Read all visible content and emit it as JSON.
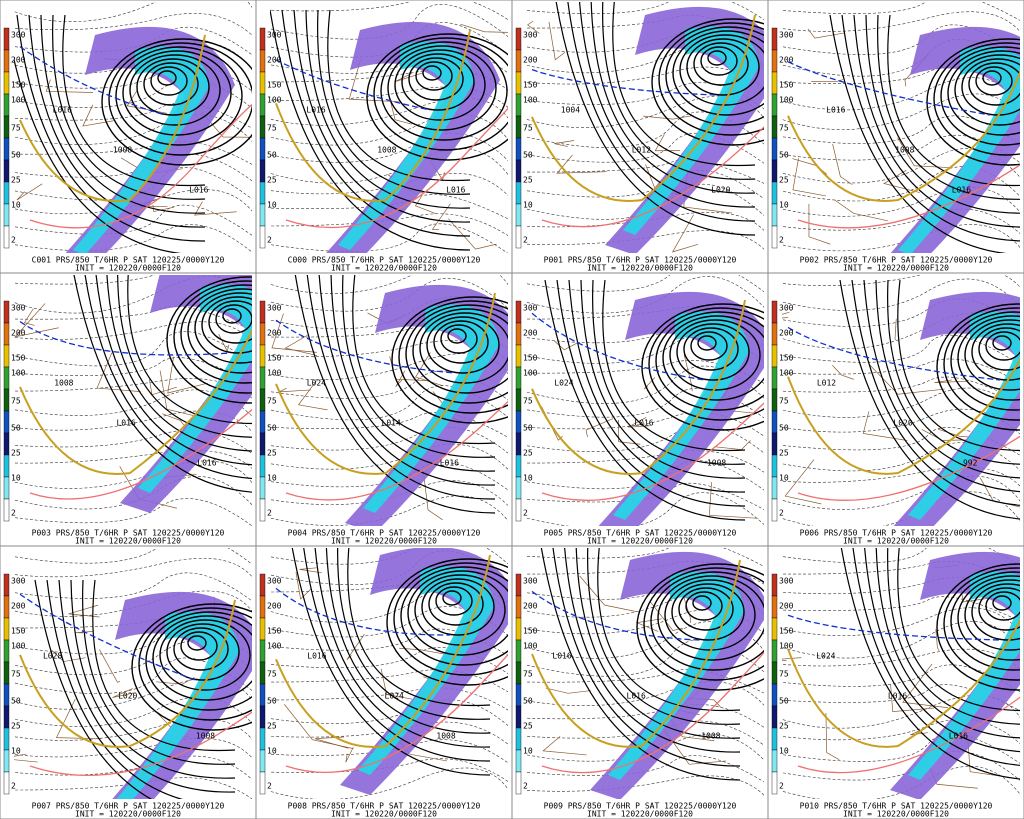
{
  "panels": [
    {
      "caption": "C001 PRS/850 T/6HR P SAT 120225/0000Y120",
      "init": "INIT = 120220/0000F120",
      "labels": [
        "L016",
        "1008",
        "L016"
      ]
    },
    {
      "caption": "C000 PRS/850 T/6HR P SAT 120225/0000Y120",
      "init": "INIT = 120220/0000F120",
      "labels": [
        "L016",
        "1008",
        "L016"
      ]
    },
    {
      "caption": "P001 PRS/850 T/6HR P SAT 120225/0000Y120",
      "init": "INIT = 120220/0000F120",
      "labels": [
        "1004",
        "L012",
        "L020"
      ]
    },
    {
      "caption": "P002 PRS/850 T/6HR P SAT 120225/0000Y120",
      "init": "INIT = 120220/0000F120",
      "labels": [
        "L016",
        "1008",
        "L016"
      ]
    },
    {
      "caption": "P003 PRS/850 T/6HR P SAT 120225/0000Y120",
      "init": "INIT = 120220/0000F120",
      "labels": [
        "1008",
        "L016",
        "L016"
      ]
    },
    {
      "caption": "P004 PRS/850 T/6HR P SAT 120225/0000Y120",
      "init": "INIT = 120220/0000F120",
      "labels": [
        "L024",
        "L014",
        "L016"
      ]
    },
    {
      "caption": "P005 PRS/850 T/6HR P SAT 120225/0000Y120",
      "init": "INIT = 120220/0000F120",
      "labels": [
        "L024",
        "L016",
        "1008"
      ]
    },
    {
      "caption": "P006 PRS/850 T/6HR P SAT 120225/0000Y120",
      "init": "INIT = 120220/0000F120",
      "labels": [
        "L012",
        "L020",
        "992"
      ]
    },
    {
      "caption": "P007 PRS/850 T/6HR P SAT 120225/0000Y120",
      "init": "INIT = 120220/0000F120",
      "labels": [
        "L028",
        "L020",
        "1008"
      ]
    },
    {
      "caption": "P008 PRS/850 T/6HR P SAT 120225/0000Y120",
      "init": "INIT = 120220/0000F120",
      "labels": [
        "L016",
        "L024",
        "1008"
      ]
    },
    {
      "caption": "P009 PRS/850 T/6HR P SAT 120225/0000Y120",
      "init": "INIT = 120220/0000F120",
      "labels": [
        "L016",
        "L016",
        "1008"
      ]
    },
    {
      "caption": "P010 PRS/850 T/6HR P SAT 120225/0000Y120",
      "init": "INIT = 120220/0000F120",
      "labels": [
        "L024",
        "L016",
        "L016"
      ]
    }
  ],
  "colorbar_labels": [
    "300",
    "200",
    "150",
    "100",
    "75",
    "50",
    "25",
    "10",
    "2"
  ]
}
